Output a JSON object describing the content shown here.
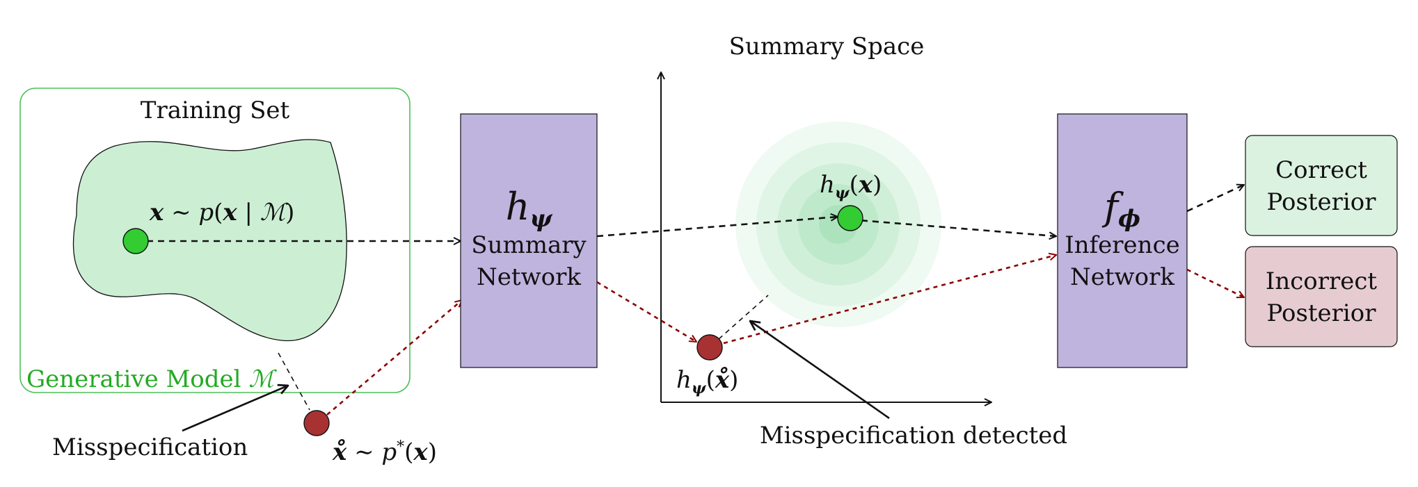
{
  "training_set": {
    "title": "Training Set",
    "model_label_text": "Generative Model ",
    "model_label_symbol": "ℳ",
    "sample_expr": {
      "x": "x",
      "sim": " ∼ ",
      "p": "p",
      "open": "(",
      "x2": "x",
      "bar": " | ",
      "M": "ℳ",
      "close": ")"
    }
  },
  "misspecified_sample": {
    "expr": {
      "x": "x̊",
      "sim": " ∼ ",
      "p": "p",
      "star": "*",
      "open": "(",
      "x2": "x",
      "close": ")"
    }
  },
  "annotations": {
    "misspecification": "Misspecification",
    "misspecification_detected": "Misspecification detected"
  },
  "summary_network": {
    "symbol_h": "h",
    "symbol_sub": "ψ",
    "line1": "Summary",
    "line2": "Network"
  },
  "summary_space": {
    "title": "Summary Space",
    "point_label": {
      "h": "h",
      "sub": "ψ",
      "open": "(",
      "x": "x",
      "close": ")"
    },
    "outlier_label": {
      "h": "h",
      "sub": "ψ",
      "open": "(",
      "x": "x̊",
      "close": ")"
    }
  },
  "inference_network": {
    "symbol_f": "f",
    "symbol_sub": "ϕ",
    "line1": "Inference",
    "line2": "Network"
  },
  "outputs": {
    "correct": {
      "line1": "Correct",
      "line2": "Posterior"
    },
    "incorrect": {
      "line1": "Incorrect",
      "line2": "Posterior"
    }
  },
  "colors": {
    "green_region": "#ccefd4",
    "green_border": "#4cc25a",
    "green_point": "#33cc33",
    "red_point": "#a83232",
    "network_fill": "#beb4de",
    "correct_fill": "#dcf2e0",
    "incorrect_fill": "#e6ccd0",
    "red_arrow": "#8b0000",
    "label_green": "#22aa22"
  }
}
